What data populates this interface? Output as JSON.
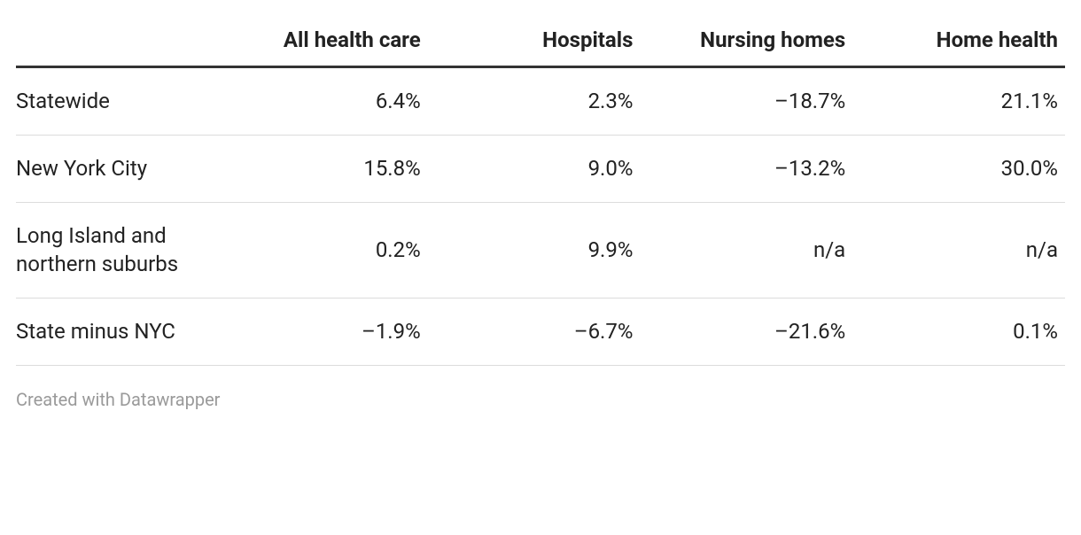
{
  "table": {
    "type": "table",
    "background_color": "#ffffff",
    "text_color": "#222222",
    "header_border_color": "#333333",
    "row_border_color": "#dcdcdc",
    "credit_color": "#9a9a9a",
    "font_family": "system-ui",
    "header_fontsize_pt": 18,
    "cell_fontsize_pt": 18,
    "credit_fontsize_pt": 15,
    "columns": [
      {
        "label": "",
        "align": "left",
        "width_pct": 19
      },
      {
        "label": "All health care",
        "align": "right",
        "width_pct": 20.25
      },
      {
        "label": "Hospitals",
        "align": "right",
        "width_pct": 20.25
      },
      {
        "label": "Nursing homes",
        "align": "right",
        "width_pct": 20.25
      },
      {
        "label": "Home health",
        "align": "right",
        "width_pct": 20.25
      }
    ],
    "rows": [
      {
        "label": "Statewide",
        "cells": [
          "6.4%",
          "2.3%",
          "–18.7%",
          "21.1%"
        ]
      },
      {
        "label": "New York City",
        "cells": [
          "15.8%",
          "9.0%",
          "–13.2%",
          "30.0%"
        ]
      },
      {
        "label": "Long Island and northern suburbs",
        "cells": [
          "0.2%",
          "9.9%",
          "n/a",
          "n/a"
        ]
      },
      {
        "label": "State minus NYC",
        "cells": [
          "–1.9%",
          "–6.7%",
          "–21.6%",
          "0.1%"
        ]
      }
    ]
  },
  "credit": "Created with Datawrapper"
}
